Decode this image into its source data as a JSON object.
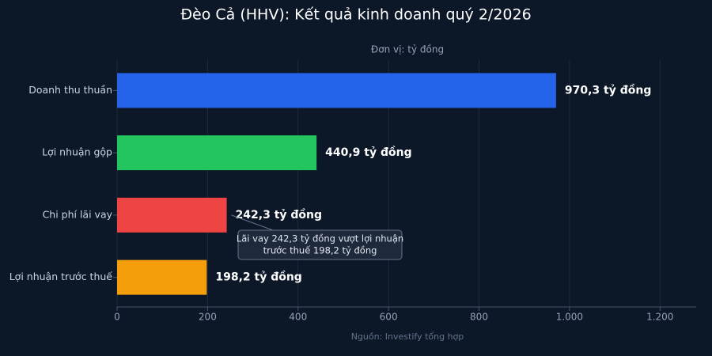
{
  "chart_data": {
    "type": "bar",
    "orientation": "horizontal",
    "title": "Đèo Cả (HHV): Kết quả kinh doanh quý 2/2026",
    "subtitle": "Đơn vị: tỷ đồng",
    "source": "Nguồn: Investify tổng hợp",
    "categories": [
      "Doanh thu thuần",
      "Lợi nhuận gộp",
      "Chi phí lãi vay",
      "Lợi nhuận trước thuế"
    ],
    "values": [
      970.3,
      440.9,
      242.3,
      198.2
    ],
    "value_labels": [
      "970,3 tỷ đồng",
      "440,9 tỷ đồng",
      "242,3 tỷ đồng",
      "198,2 tỷ đồng"
    ],
    "colors": [
      "#2563eb",
      "#22c55e",
      "#ef4444",
      "#f59e0b"
    ],
    "xlim": [
      0,
      1280
    ],
    "xticks": [
      0,
      200,
      400,
      600,
      800,
      {
        "value": 1000,
        "label": "1.000"
      },
      {
        "value": 1200,
        "label": "1.200"
      }
    ],
    "grid": true,
    "annotation": {
      "category": 2,
      "lines": [
        "Lãi vay 242,3 tỷ đồng vượt lợi nhuận",
        "trước thuế 198,2 tỷ đồng"
      ]
    }
  }
}
